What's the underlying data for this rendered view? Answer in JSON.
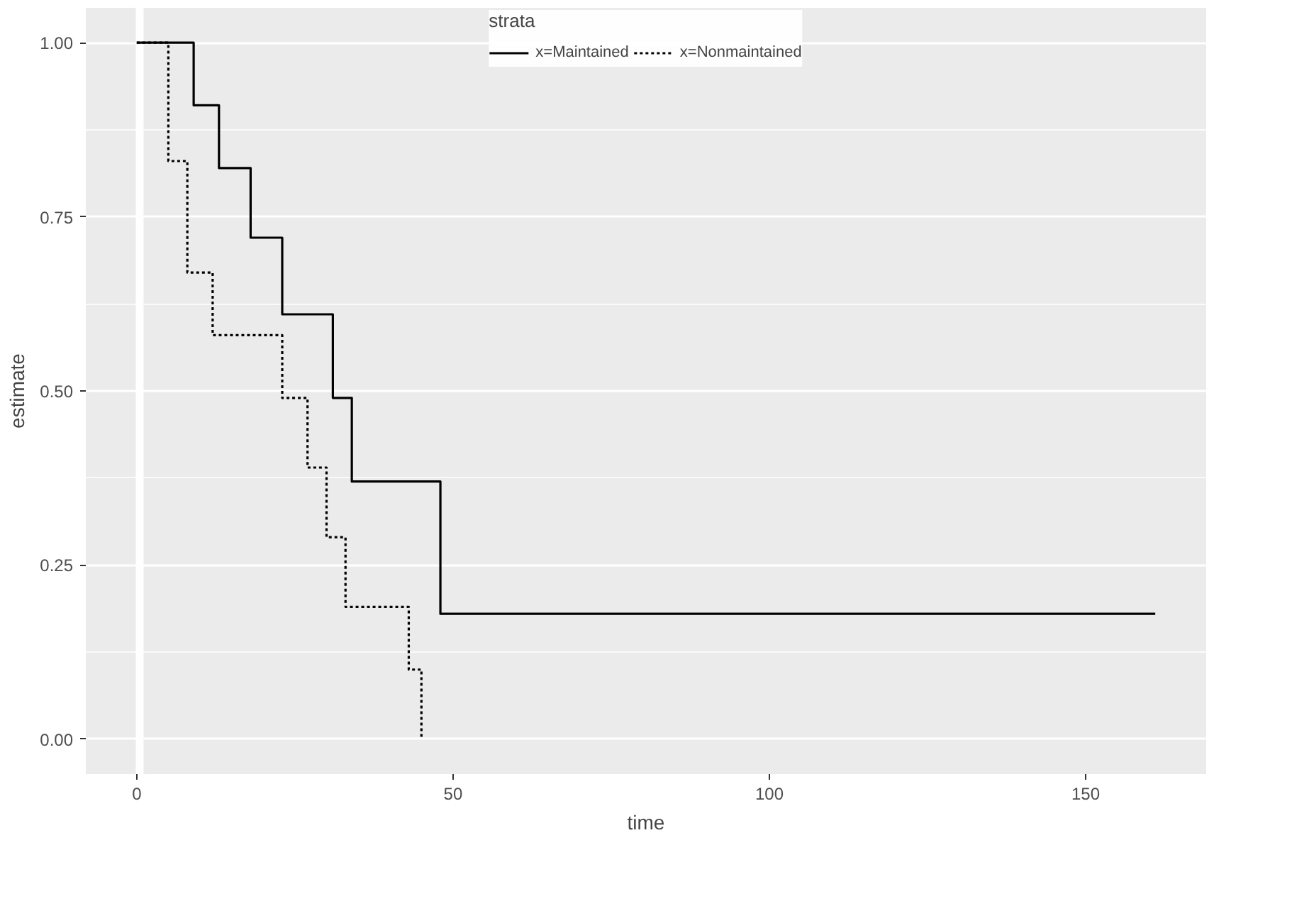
{
  "chart_data": {
    "type": "step",
    "xlabel": "time",
    "ylabel": "estimate",
    "legend_title": "strata",
    "legend": "top",
    "series": [
      {
        "name": "x=Maintained",
        "color": "#000000",
        "line_style": "solid",
        "x": [
          0,
          9,
          13,
          18,
          23,
          31,
          34,
          48,
          161
        ],
        "values": [
          1,
          0.91,
          0.82,
          0.72,
          0.61,
          0.49,
          0.37,
          0.18,
          0.18
        ]
      },
      {
        "name": "x=Nonmaintained",
        "color": "#000000",
        "line_style": "dotted",
        "x": [
          0,
          5,
          8,
          12,
          23,
          27,
          30,
          33,
          43,
          45
        ],
        "values": [
          1,
          0.83,
          0.67,
          0.58,
          0.49,
          0.39,
          0.29,
          0.19,
          0.1,
          0
        ]
      }
    ],
    "xlim": [
      -8.05,
      169.05
    ],
    "xticks": [
      0,
      50,
      100,
      150
    ],
    "ylim": [
      -0.05,
      1.05
    ],
    "yticks": [
      {
        "value": 0,
        "label": "0.00"
      },
      {
        "value": 0.25,
        "label": "0.25"
      },
      {
        "value": 0.5,
        "label": "0.50"
      },
      {
        "value": 0.75,
        "label": "0.75"
      },
      {
        "value": 1,
        "label": "1.00"
      }
    ],
    "grid": true
  }
}
